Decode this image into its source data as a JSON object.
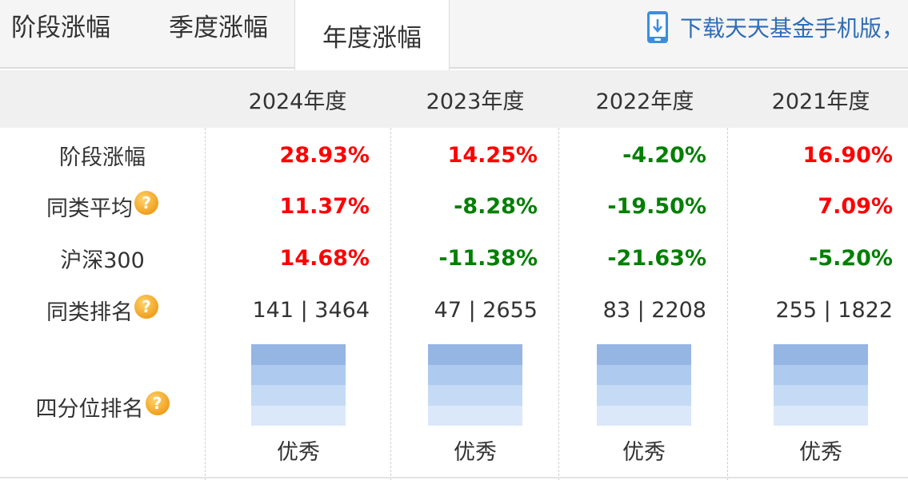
{
  "tabs": [
    "阶段涨幅",
    "季度涨幅",
    "年度涨幅"
  ],
  "active_tab": 2,
  "download_text": "下载天天基金手机版，",
  "columns": [
    "2024年度",
    "2023年度",
    "2022年度",
    "2021年度"
  ],
  "rows": [
    {
      "label": "阶段涨幅",
      "help": false,
      "values": [
        "28.93%",
        "14.25%",
        "-4.20%",
        "16.90%"
      ]
    },
    {
      "label": "同类平均",
      "help": true,
      "values": [
        "11.37%",
        "-8.28%",
        "-19.50%",
        "7.09%"
      ]
    },
    {
      "label": "沪深300",
      "help": false,
      "values": [
        "14.68%",
        "-11.38%",
        "-21.63%",
        "-5.20%"
      ]
    },
    {
      "label": "同类排名",
      "help": true,
      "values": [
        "141 | 3464",
        "47 | 2655",
        "83 | 2208",
        "255 | 1822"
      ]
    }
  ],
  "quartile_row": {
    "label": "四分位排名",
    "help": true,
    "values": [
      "优秀",
      "优秀",
      "优秀",
      "优秀"
    ]
  },
  "colors": {
    "positive": "#ff0000",
    "negative": "#008000",
    "link": "#2f6db5"
  },
  "help_glyph": "?"
}
